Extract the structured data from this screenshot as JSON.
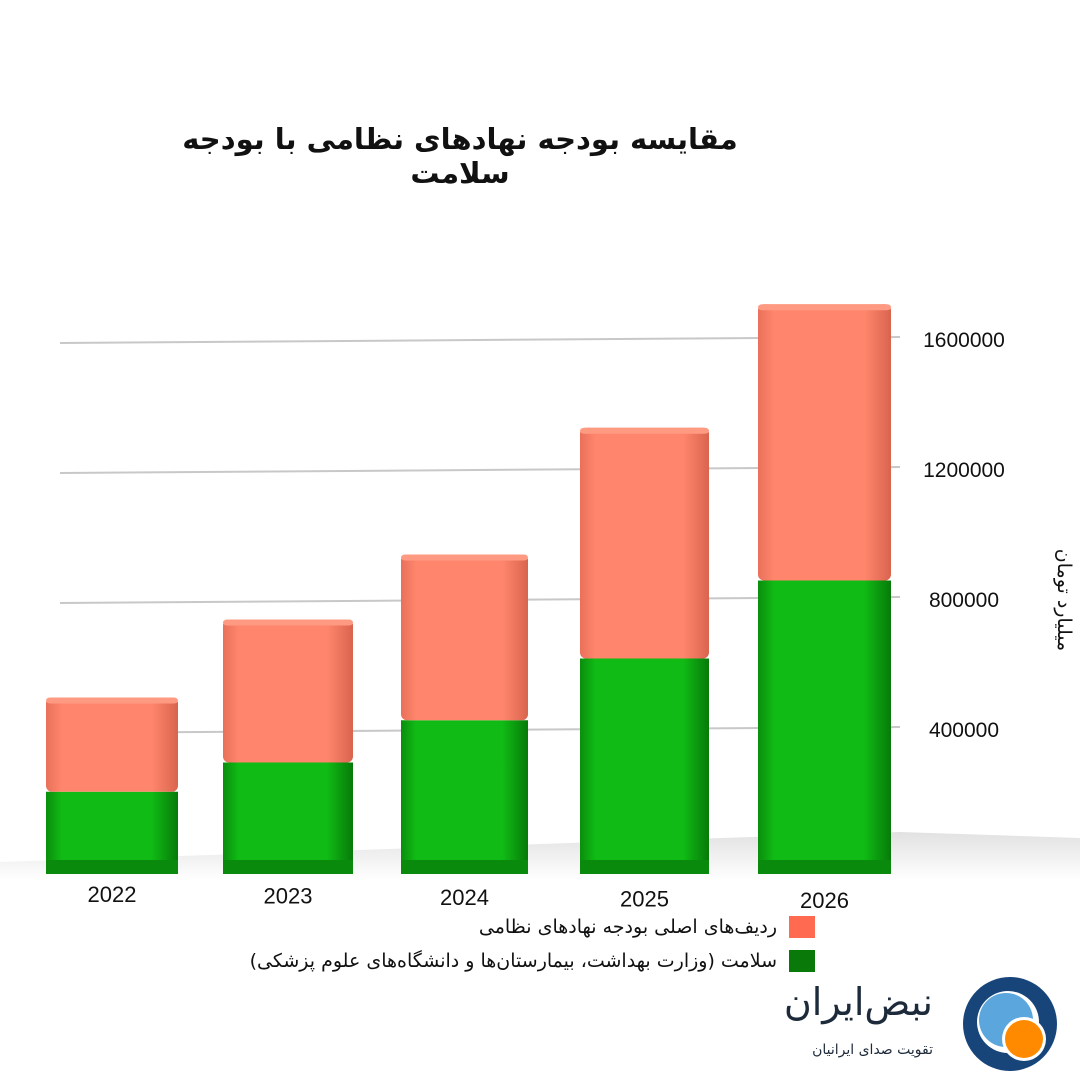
{
  "title": "مقایسه بودجه نهادهای نظامی با بودجه سلامت",
  "chart_data": {
    "type": "bar",
    "stacked": true,
    "categories": [
      "2022",
      "2023",
      "2024",
      "2025",
      "2026"
    ],
    "series": [
      {
        "name": "سلامت (وزارت بهداشت، بیمارستان‌ها و دانشگاه‌های علوم پزشکی)",
        "values": [
          210000,
          300000,
          430000,
          620000,
          860000
        ],
        "color": "#0fb814"
      },
      {
        "name": "ردیف‌های اصلی بودجه نهادهای نظامی",
        "values": [
          290000,
          440000,
          510000,
          710000,
          850000
        ],
        "color": "#ff8468"
      }
    ],
    "yticks": [
      400000,
      800000,
      1200000,
      1600000
    ],
    "ylabel": "میلیارد تومان",
    "ylim": [
      0,
      1600000
    ],
    "grid": true,
    "legend_position": "bottom"
  },
  "legend": [
    {
      "label": "ردیف‌های اصلی بودجه نهادهای نظامی",
      "color": "#ff6a50"
    },
    {
      "label": "سلامت (وزارت بهداشت، بیمارستان‌ها و دانشگاه‌های علوم پزشکی)",
      "color": "#097a0a"
    }
  ],
  "logo": {
    "name": "نبض‌ایران",
    "tagline": "تقویت صدای ایرانیان",
    "colors": {
      "ring": "#17457a",
      "inner": "#5ba6dc",
      "accent": "#ff8a00"
    }
  }
}
